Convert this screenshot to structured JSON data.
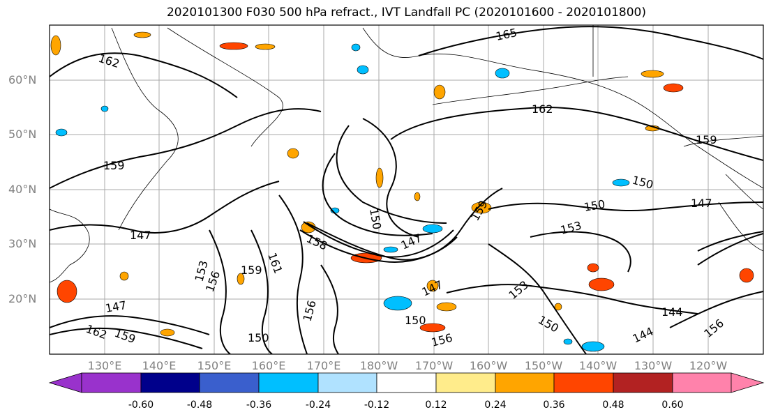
{
  "title": "2020101300 F030 500 hPa refract., IVT Landfall PC (2020101600 - 2020101800)",
  "lat_labels": [
    "60°N",
    "50°N",
    "40°N",
    "30°N",
    "20°N"
  ],
  "lon_labels": [
    "130°E",
    "140°E",
    "150°E",
    "160°E",
    "170°E",
    "180°W",
    "170°W",
    "160°W",
    "150°W",
    "140°W",
    "130°W",
    "120°W"
  ],
  "contour_labels": [
    "165",
    "162",
    "162",
    "159",
    "159",
    "159",
    "156",
    "156",
    "156",
    "153",
    "153",
    "153",
    "150",
    "150",
    "150",
    "150",
    "150",
    "150",
    "147",
    "147",
    "147",
    "147",
    "147",
    "144",
    "144",
    "159",
    "162",
    "161",
    "159",
    "158",
    "156"
  ],
  "colorbar": {
    "ticks": [
      "-0.60",
      "-0.48",
      "-0.36",
      "-0.24",
      "-0.12",
      "0.12",
      "0.24",
      "0.36",
      "0.48",
      "0.60"
    ],
    "colors": [
      "#9932cc",
      "#00008b",
      "#3a5fcd",
      "#00bfff",
      "#b0e2ff",
      "#ffffff",
      "#ffec8b",
      "#ffa500",
      "#ff4500",
      "#b22222",
      "#ff82ab"
    ]
  }
}
